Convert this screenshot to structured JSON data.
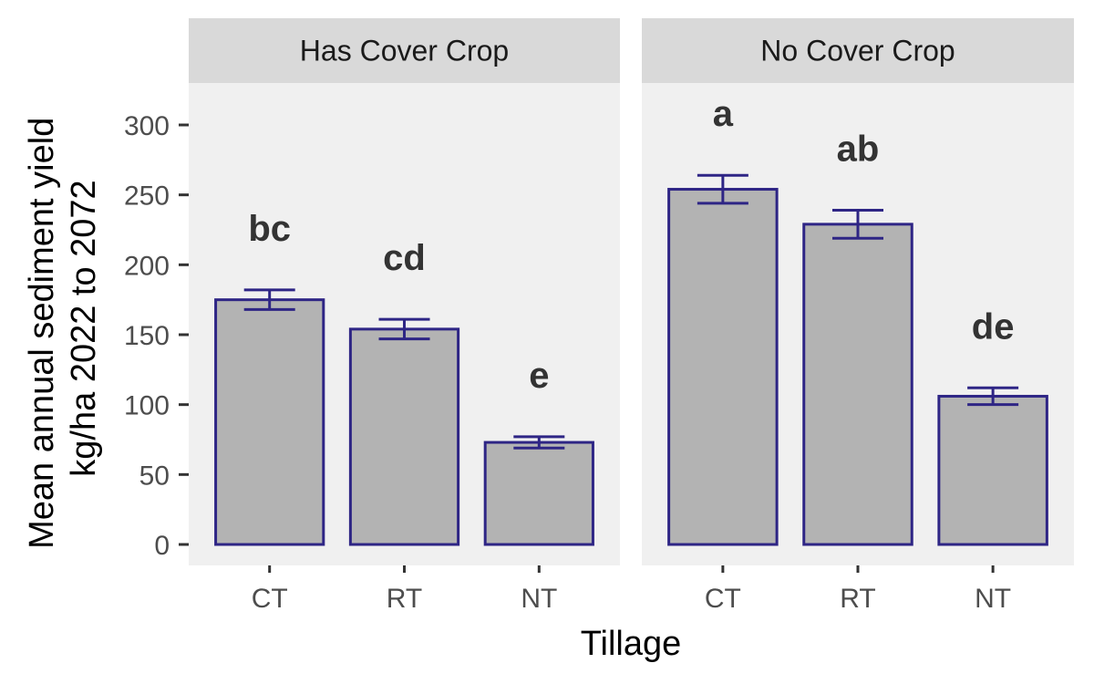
{
  "chart_data": {
    "type": "bar",
    "xlabel": "Tillage",
    "ylabel_lines": [
      "Mean annual sediment yield",
      "kg/ha 2022 to 2072"
    ],
    "ylim": [
      -15,
      330
    ],
    "yticks": [
      0,
      50,
      100,
      150,
      200,
      250,
      300
    ],
    "categories": [
      "CT",
      "RT",
      "NT"
    ],
    "grid": false,
    "colors": {
      "bar_fill": "#b3b3b3",
      "bar_outline": "#2e2585",
      "panel_background": "#f0f0f0",
      "strip_background": "#d9d9d9"
    },
    "facets": [
      {
        "name": "Has Cover Crop",
        "values": [
          175,
          154,
          73
        ],
        "error_low": [
          168,
          147,
          69
        ],
        "error_high": [
          182,
          161,
          77
        ],
        "labels": [
          "bc",
          "cd",
          "e"
        ]
      },
      {
        "name": "No Cover Crop",
        "values": [
          254,
          229,
          106
        ],
        "error_low": [
          244,
          219,
          100
        ],
        "error_high": [
          264,
          239,
          112
        ],
        "labels": [
          "a",
          "ab",
          "de"
        ]
      }
    ]
  }
}
